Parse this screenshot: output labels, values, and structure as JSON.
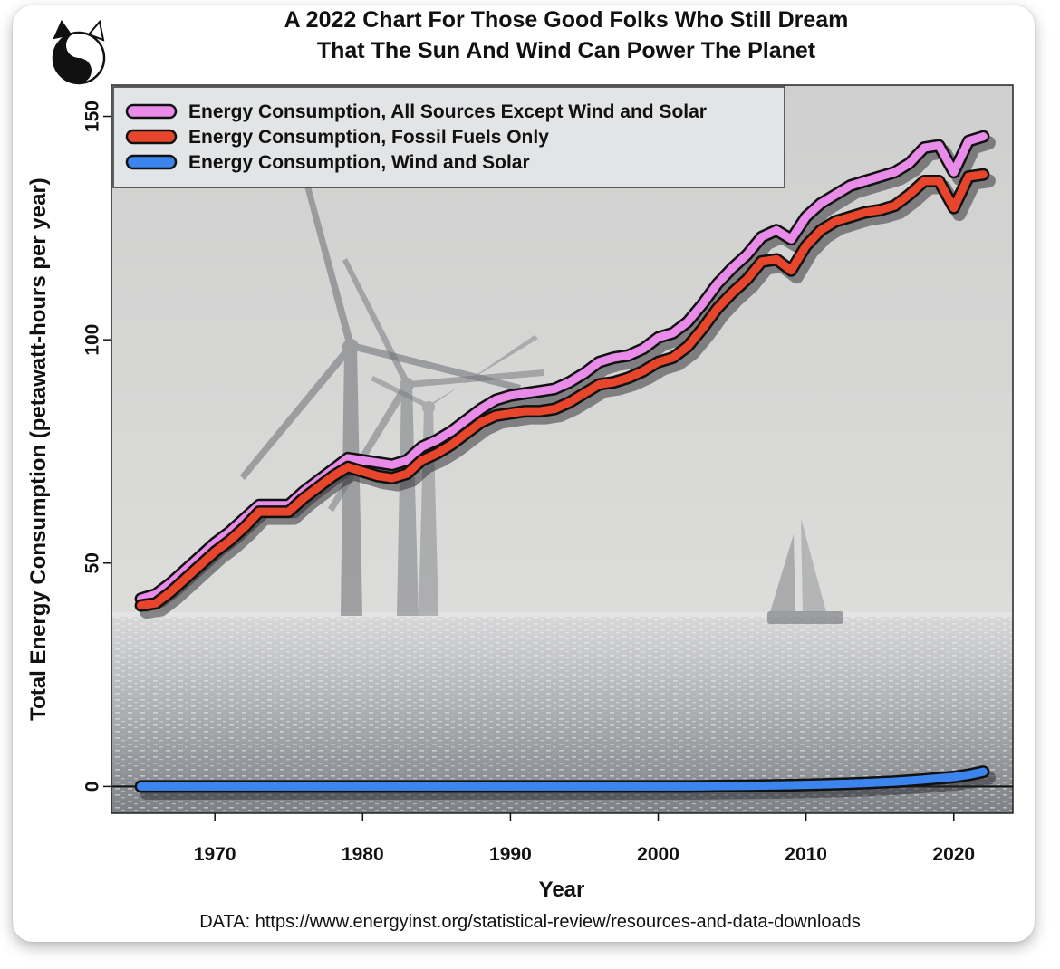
{
  "title_lines": [
    "A 2022 Chart For Those Good Folks Who Still Dream",
    "That The Sun And Wind Can Power The Planet"
  ],
  "source_note": "DATA: https://www.energyinst.org/statistical-review/resources-and-data-downloads",
  "chart_data": {
    "type": "line",
    "title": "A 2022 Chart For Those Good Folks Who Still Dream That The Sun And Wind Can Power The Planet",
    "xlabel": "Year",
    "ylabel": "Total Energy Consumption (petawatt-hours per year)",
    "xlim": [
      1963,
      2024
    ],
    "ylim": [
      -6,
      157
    ],
    "xticks": [
      1970,
      1980,
      1990,
      2000,
      2010,
      2020
    ],
    "yticks": [
      0,
      50,
      100,
      150
    ],
    "legend_position": "top-left",
    "background": "photo of offshore wind turbines and a sailboat on a sunlit sea",
    "x": [
      1965,
      1966,
      1967,
      1968,
      1969,
      1970,
      1971,
      1972,
      1973,
      1974,
      1975,
      1976,
      1977,
      1978,
      1979,
      1980,
      1981,
      1982,
      1983,
      1984,
      1985,
      1986,
      1987,
      1988,
      1989,
      1990,
      1991,
      1992,
      1993,
      1994,
      1995,
      1996,
      1997,
      1998,
      1999,
      2000,
      2001,
      2002,
      2003,
      2004,
      2005,
      2006,
      2007,
      2008,
      2009,
      2010,
      2011,
      2012,
      2013,
      2014,
      2015,
      2016,
      2017,
      2018,
      2019,
      2020,
      2021,
      2022
    ],
    "series": [
      {
        "name": "Energy Consumption, All Sources Except Wind and Solar",
        "color": "#e98ce9",
        "values": [
          42,
          43,
          45.5,
          48.5,
          51.5,
          54.5,
          57,
          60,
          63,
          63,
          63,
          66,
          68.5,
          71,
          73.5,
          73,
          72.5,
          72,
          73,
          76,
          77.5,
          79.5,
          82,
          84.5,
          86.5,
          87.5,
          88,
          88.5,
          89,
          90.5,
          92.5,
          95,
          96,
          96.5,
          98,
          100.5,
          101.5,
          104,
          108,
          112.5,
          116,
          119,
          123,
          124.5,
          122.5,
          127.5,
          130.5,
          132.5,
          134.5,
          135.5,
          136.5,
          137.5,
          139.5,
          143,
          143.5,
          137.5,
          144.5,
          145.5
        ]
      },
      {
        "name": "Energy Consumption, Fossil Fuels Only",
        "color": "#e8462c",
        "values": [
          40.5,
          41,
          43.5,
          46.5,
          49.5,
          52.5,
          55,
          58,
          61.5,
          61.5,
          61.5,
          64.5,
          67,
          69.5,
          71.5,
          70.5,
          69.5,
          69,
          70,
          73,
          74.5,
          76.5,
          79,
          81.5,
          83,
          83.5,
          84,
          84,
          84.5,
          86,
          88,
          90,
          90.5,
          91.5,
          93,
          95,
          96,
          98.5,
          102.5,
          107,
          110.5,
          113.5,
          117.5,
          118,
          115.5,
          121,
          124.5,
          126.5,
          127.5,
          128.5,
          129,
          130,
          132.5,
          135.5,
          135.5,
          129.5,
          136.5,
          137
        ]
      },
      {
        "name": "Energy Consumption, Wind and Solar",
        "color": "#3d85ee",
        "values": [
          0,
          0,
          0,
          0,
          0,
          0,
          0,
          0,
          0,
          0,
          0,
          0,
          0,
          0,
          0,
          0,
          0,
          0,
          0,
          0,
          0,
          0,
          0,
          0,
          0,
          0,
          0,
          0,
          0,
          0,
          0,
          0,
          0,
          0,
          0,
          0,
          0,
          0,
          0.05,
          0.08,
          0.1,
          0.13,
          0.18,
          0.22,
          0.28,
          0.36,
          0.45,
          0.55,
          0.65,
          0.78,
          0.92,
          1.08,
          1.3,
          1.55,
          1.82,
          2.1,
          2.6,
          3.3
        ]
      }
    ]
  }
}
